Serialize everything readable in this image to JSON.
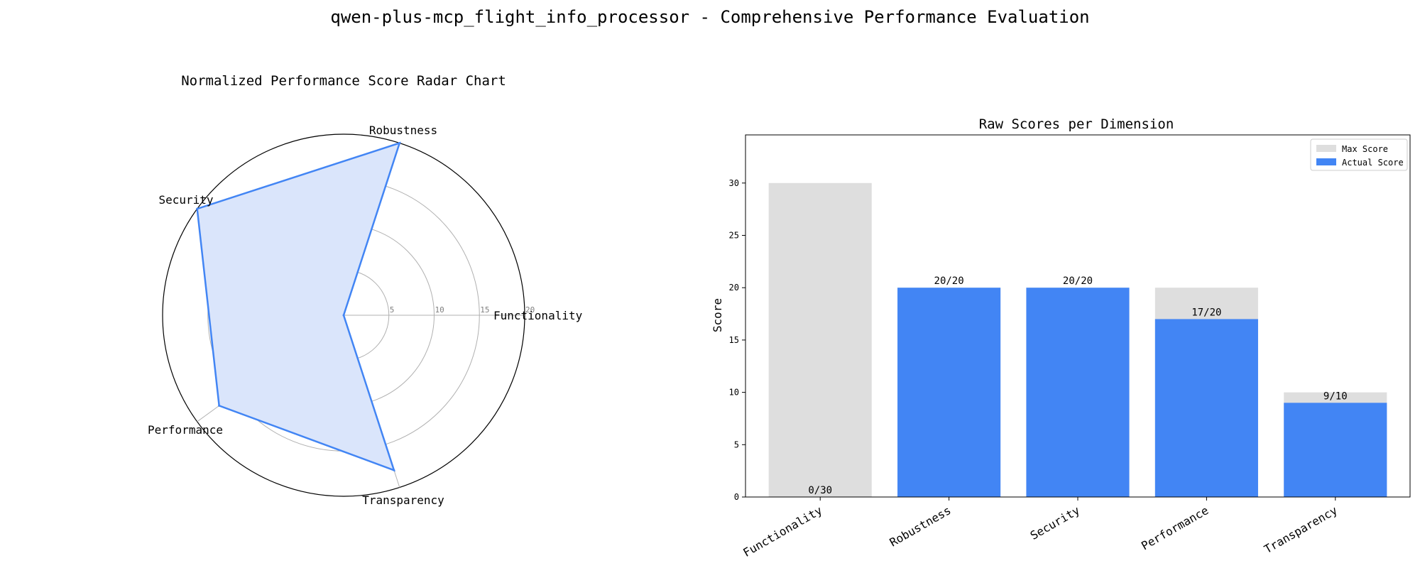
{
  "figure_title": "qwen-plus-mcp_flight_info_processor - Comprehensive Performance Evaluation",
  "chart_data": [
    {
      "type": "radar",
      "title": "Normalized Performance Score Radar Chart",
      "categories": [
        "Functionality",
        "Robustness",
        "Security",
        "Performance",
        "Transparency"
      ],
      "values": [
        0,
        20,
        20,
        17,
        18
      ],
      "rlim": [
        0,
        20
      ],
      "rticks": [
        5,
        10,
        15,
        20
      ],
      "line_color": "#4285f4",
      "fill_color": "#dae5fb"
    },
    {
      "type": "bar",
      "title": "Raw Scores per Dimension",
      "categories": [
        "Functionality",
        "Robustness",
        "Security",
        "Performance",
        "Transparency"
      ],
      "series": [
        {
          "name": "Max Score",
          "values": [
            30,
            20,
            20,
            20,
            10
          ],
          "color": "#dedede"
        },
        {
          "name": "Actual Score",
          "values": [
            0,
            20,
            20,
            17,
            9
          ],
          "color": "#4285f4"
        }
      ],
      "data_labels": [
        "0/30",
        "20/20",
        "20/20",
        "17/20",
        "9/10"
      ],
      "ylabel": "Score",
      "ylim": [
        0,
        34.6
      ],
      "yticks": [
        0,
        5,
        10,
        15,
        20,
        25,
        30
      ],
      "legend_position": "upper right"
    }
  ]
}
